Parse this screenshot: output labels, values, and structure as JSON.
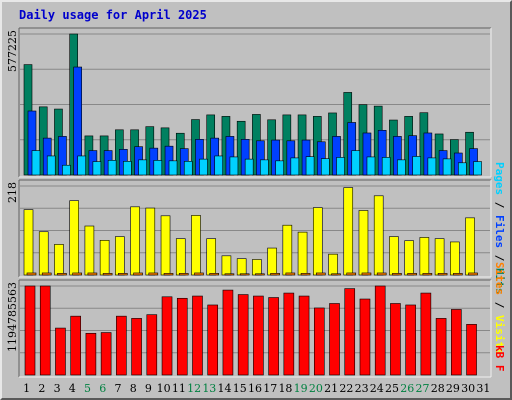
{
  "title": "Daily usage for April 2025",
  "colors": {
    "background": "#c0c0c0",
    "pages": "#00d0ff",
    "files": "#0040ff",
    "hits": "#008060",
    "visits": "#ffff00",
    "sites": "#ff8000",
    "kbytes": "#ff0000",
    "weekend_label": "#008040",
    "grid": "#888888",
    "title": "#0000cc"
  },
  "chart_data": [
    {
      "type": "bar",
      "title": "Daily usage for April 2025",
      "y_max_label": "577225",
      "ylim": [
        0,
        577225
      ],
      "grid": true,
      "categories": [
        "1",
        "2",
        "3",
        "4",
        "5",
        "6",
        "7",
        "8",
        "9",
        "10",
        "11",
        "12",
        "13",
        "14",
        "15",
        "16",
        "17",
        "18",
        "19",
        "20",
        "21",
        "22",
        "23",
        "24",
        "25",
        "26",
        "27",
        "28",
        "29",
        "30",
        "31"
      ],
      "legend": {
        "pages": "Pages",
        "files": "Files",
        "hits": "Hits",
        "sep": " / "
      },
      "series": [
        {
          "name": "Hits",
          "color": "#008060",
          "values": [
            452000,
            279000,
            270000,
            577225,
            160000,
            160000,
            185000,
            185000,
            198000,
            193000,
            171000,
            227000,
            246000,
            240000,
            220000,
            248000,
            226000,
            246000,
            246000,
            240000,
            254000,
            338000,
            288000,
            282000,
            225000,
            240000,
            255000,
            168000,
            145000,
            175000,
            0
          ]
        },
        {
          "name": "Files",
          "color": "#0040ff",
          "values": [
            262000,
            151000,
            158000,
            442000,
            100000,
            100000,
            105000,
            116000,
            110000,
            118000,
            108000,
            146000,
            151000,
            158000,
            146000,
            140000,
            143000,
            140000,
            143000,
            136000,
            158000,
            215000,
            172000,
            183000,
            158000,
            161000,
            172000,
            100000,
            90000,
            108000,
            0
          ]
        },
        {
          "name": "Pages",
          "color": "#00d0ff",
          "values": [
            100000,
            78000,
            40000,
            78000,
            55000,
            60000,
            56000,
            62000,
            60000,
            58000,
            56000,
            65000,
            78000,
            74000,
            65000,
            62000,
            58000,
            70000,
            75000,
            67000,
            72000,
            100000,
            74000,
            72000,
            62000,
            76000,
            70000,
            66000,
            50000,
            55000,
            0
          ]
        }
      ]
    },
    {
      "type": "bar",
      "y_max_label": "218",
      "ylim": [
        0,
        218
      ],
      "grid": true,
      "categories": [
        "1",
        "2",
        "3",
        "4",
        "5",
        "6",
        "7",
        "8",
        "9",
        "10",
        "11",
        "12",
        "13",
        "14",
        "15",
        "16",
        "17",
        "18",
        "19",
        "20",
        "21",
        "22",
        "23",
        "24",
        "25",
        "26",
        "27",
        "28",
        "29",
        "30",
        "31"
      ],
      "legend": {
        "sites": "Sites",
        "visits": "Visits",
        "sep": " / "
      },
      "series": [
        {
          "name": "Visits",
          "color": "#ffff00",
          "values": [
            160,
            106,
            75,
            182,
            120,
            85,
            94,
            167,
            164,
            145,
            89,
            146,
            89,
            47,
            40,
            38,
            66,
            122,
            105,
            165,
            51,
            214,
            158,
            194,
            94,
            84,
            92,
            89,
            81,
            140,
            0
          ]
        },
        {
          "name": "Sites",
          "color": "#ff8000",
          "values": [
            5,
            5,
            4,
            5,
            5,
            4,
            4,
            5,
            5,
            4,
            4,
            5,
            4,
            3,
            3,
            3,
            4,
            5,
            4,
            5,
            3,
            5,
            5,
            5,
            4,
            4,
            4,
            4,
            4,
            5,
            0
          ]
        }
      ]
    },
    {
      "type": "bar",
      "y_max_label": "1194785563",
      "ylim": [
        0,
        1194785563
      ],
      "grid": true,
      "categories": [
        "1",
        "2",
        "3",
        "4",
        "5",
        "6",
        "7",
        "8",
        "9",
        "10",
        "11",
        "12",
        "13",
        "14",
        "15",
        "16",
        "17",
        "18",
        "19",
        "20",
        "21",
        "22",
        "23",
        "24",
        "25",
        "26",
        "27",
        "28",
        "29",
        "30",
        "31"
      ],
      "legend": {
        "kbytes": "kB F"
      },
      "series": [
        {
          "name": "kB F",
          "color": "#ff0000",
          "values": [
            1194785563,
            1194785563,
            630000000,
            790000000,
            560000000,
            570000000,
            790000000,
            760000000,
            810000000,
            1050000000,
            1030000000,
            1060000000,
            940000000,
            1140000000,
            1080000000,
            1060000000,
            1040000000,
            1100000000,
            1060000000,
            900000000,
            960000000,
            1160000000,
            1020000000,
            1194785563,
            960000000,
            940000000,
            1100000000,
            760000000,
            880000000,
            680000000,
            0
          ]
        }
      ]
    }
  ],
  "day_labels": [
    "1",
    "2",
    "3",
    "4",
    "5",
    "6",
    "7",
    "8",
    "9",
    "10",
    "11",
    "12",
    "13",
    "14",
    "15",
    "16",
    "17",
    "18",
    "19",
    "20",
    "21",
    "22",
    "23",
    "24",
    "25",
    "26",
    "27",
    "28",
    "29",
    "30",
    "31"
  ],
  "weekend_days": [
    "5",
    "6",
    "12",
    "13",
    "19",
    "20",
    "26",
    "27"
  ]
}
